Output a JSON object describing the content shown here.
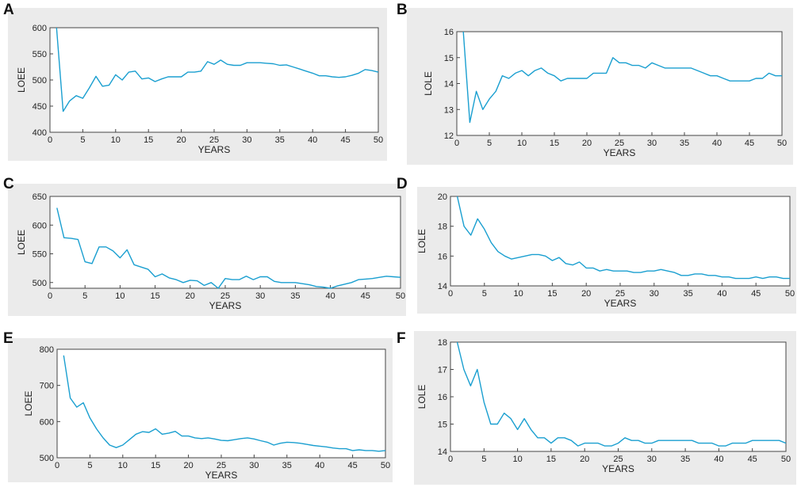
{
  "figure": {
    "line_color": "#1a9fd0",
    "panel_background": "#ebebeb",
    "plot_background": "#ffffff"
  },
  "chart_data": [
    {
      "id": "A",
      "label": "A",
      "type": "line",
      "xlabel": "YEARS",
      "ylabel": "LOEE",
      "xlim": [
        0,
        50
      ],
      "ylim": [
        400,
        600
      ],
      "xticks": [
        0,
        5,
        10,
        15,
        20,
        25,
        30,
        35,
        40,
        45,
        50
      ],
      "yticks": [
        400,
        450,
        500,
        550,
        600
      ],
      "series": [
        {
          "name": "LOEE",
          "x": [
            1,
            2,
            3,
            4,
            5,
            6,
            7,
            8,
            9,
            10,
            11,
            12,
            13,
            14,
            15,
            16,
            17,
            18,
            19,
            20,
            21,
            22,
            23,
            24,
            25,
            26,
            27,
            28,
            29,
            30,
            31,
            32,
            33,
            34,
            35,
            36,
            37,
            38,
            39,
            40,
            41,
            42,
            43,
            44,
            45,
            46,
            47,
            48,
            49,
            50
          ],
          "y": [
            600,
            440,
            460,
            470,
            465,
            485,
            507,
            488,
            490,
            510,
            500,
            515,
            517,
            502,
            504,
            497,
            502,
            506,
            506,
            506,
            515,
            515,
            517,
            535,
            530,
            538,
            530,
            528,
            528,
            533,
            533,
            533,
            532,
            531,
            528,
            529,
            525,
            521,
            517,
            513,
            508,
            508,
            506,
            505,
            506,
            509,
            513,
            520,
            518,
            515
          ]
        }
      ]
    },
    {
      "id": "B",
      "label": "B",
      "type": "line",
      "xlabel": "YEARS",
      "ylabel": "LOLE",
      "xlim": [
        0,
        50
      ],
      "ylim": [
        12,
        16
      ],
      "xticks": [
        0,
        5,
        10,
        15,
        20,
        25,
        30,
        35,
        40,
        45,
        50
      ],
      "yticks": [
        12,
        13,
        14,
        15,
        16
      ],
      "series": [
        {
          "name": "LOLE",
          "x": [
            1,
            2,
            3,
            4,
            5,
            6,
            7,
            8,
            9,
            10,
            11,
            12,
            13,
            14,
            15,
            16,
            17,
            18,
            19,
            20,
            21,
            22,
            23,
            24,
            25,
            26,
            27,
            28,
            29,
            30,
            31,
            32,
            33,
            34,
            35,
            36,
            37,
            38,
            39,
            40,
            41,
            42,
            43,
            44,
            45,
            46,
            47,
            48,
            49,
            50
          ],
          "y": [
            16,
            12.5,
            13.7,
            13.0,
            13.4,
            13.7,
            14.3,
            14.2,
            14.4,
            14.5,
            14.3,
            14.5,
            14.6,
            14.4,
            14.3,
            14.1,
            14.2,
            14.2,
            14.2,
            14.2,
            14.4,
            14.4,
            14.4,
            15.0,
            14.8,
            14.8,
            14.7,
            14.7,
            14.6,
            14.8,
            14.7,
            14.6,
            14.6,
            14.6,
            14.6,
            14.6,
            14.5,
            14.4,
            14.3,
            14.3,
            14.2,
            14.1,
            14.1,
            14.1,
            14.1,
            14.2,
            14.2,
            14.4,
            14.3,
            14.3
          ]
        }
      ]
    },
    {
      "id": "C",
      "label": "C",
      "type": "line",
      "xlabel": "YEARS",
      "ylabel": "LOEE",
      "xlim": [
        0,
        50
      ],
      "ylim": [
        490,
        650
      ],
      "xticks": [
        0,
        5,
        10,
        15,
        20,
        25,
        30,
        35,
        40,
        45,
        50
      ],
      "yticks": [
        500,
        550,
        600,
        650
      ],
      "series": [
        {
          "name": "LOEE",
          "x": [
            1,
            2,
            3,
            4,
            5,
            6,
            7,
            8,
            9,
            10,
            11,
            12,
            13,
            14,
            15,
            16,
            17,
            18,
            19,
            20,
            21,
            22,
            23,
            24,
            25,
            26,
            27,
            28,
            29,
            30,
            31,
            32,
            33,
            34,
            35,
            36,
            37,
            38,
            39,
            40,
            41,
            42,
            43,
            44,
            45,
            46,
            47,
            48,
            49,
            50
          ],
          "y": [
            630,
            578,
            577,
            575,
            536,
            533,
            562,
            562,
            555,
            543,
            557,
            531,
            527,
            523,
            510,
            515,
            508,
            505,
            500,
            504,
            503,
            495,
            500,
            490,
            507,
            505,
            505,
            511,
            505,
            510,
            510,
            502,
            500,
            500,
            500,
            498,
            496,
            493,
            492,
            490,
            494,
            497,
            500,
            505,
            506,
            507,
            509,
            511,
            510,
            509
          ]
        }
      ]
    },
    {
      "id": "D",
      "label": "D",
      "type": "line",
      "xlabel": "YEARS",
      "ylabel": "LOLE",
      "xlim": [
        0,
        50
      ],
      "ylim": [
        14,
        20
      ],
      "xticks": [
        0,
        5,
        10,
        15,
        20,
        25,
        30,
        35,
        40,
        45,
        50
      ],
      "yticks": [
        14,
        16,
        18,
        20
      ],
      "series": [
        {
          "name": "LOLE",
          "x": [
            1,
            2,
            3,
            4,
            5,
            6,
            7,
            8,
            9,
            10,
            11,
            12,
            13,
            14,
            15,
            16,
            17,
            18,
            19,
            20,
            21,
            22,
            23,
            24,
            25,
            26,
            27,
            28,
            29,
            30,
            31,
            32,
            33,
            34,
            35,
            36,
            37,
            38,
            39,
            40,
            41,
            42,
            43,
            44,
            45,
            46,
            47,
            48,
            49,
            50
          ],
          "y": [
            20,
            18,
            17.4,
            18.5,
            17.8,
            16.9,
            16.3,
            16.0,
            15.8,
            15.9,
            16.0,
            16.1,
            16.1,
            16.0,
            15.7,
            15.9,
            15.5,
            15.4,
            15.6,
            15.2,
            15.2,
            15.0,
            15.1,
            15.0,
            15.0,
            15.0,
            14.9,
            14.9,
            15.0,
            15.0,
            15.1,
            15.0,
            14.9,
            14.7,
            14.7,
            14.8,
            14.8,
            14.7,
            14.7,
            14.6,
            14.6,
            14.5,
            14.5,
            14.5,
            14.6,
            14.5,
            14.6,
            14.6,
            14.5,
            14.5
          ]
        }
      ]
    },
    {
      "id": "E",
      "label": "E",
      "type": "line",
      "xlabel": "YEARS",
      "ylabel": "LOEE",
      "xlim": [
        0,
        50
      ],
      "ylim": [
        500,
        800
      ],
      "xticks": [
        0,
        5,
        10,
        15,
        20,
        25,
        30,
        35,
        40,
        45,
        50
      ],
      "yticks": [
        500,
        600,
        700,
        800
      ],
      "series": [
        {
          "name": "LOEE",
          "x": [
            1,
            2,
            3,
            4,
            5,
            6,
            7,
            8,
            9,
            10,
            11,
            12,
            13,
            14,
            15,
            16,
            17,
            18,
            19,
            20,
            21,
            22,
            23,
            24,
            25,
            26,
            27,
            28,
            29,
            30,
            31,
            32,
            33,
            34,
            35,
            36,
            37,
            38,
            39,
            40,
            41,
            42,
            43,
            44,
            45,
            46,
            47,
            48,
            49,
            50
          ],
          "y": [
            783,
            665,
            640,
            652,
            610,
            580,
            555,
            535,
            528,
            535,
            550,
            565,
            572,
            570,
            580,
            565,
            568,
            573,
            560,
            560,
            555,
            553,
            555,
            552,
            548,
            547,
            550,
            553,
            555,
            552,
            547,
            543,
            535,
            540,
            543,
            542,
            540,
            537,
            534,
            532,
            530,
            527,
            525,
            525,
            520,
            522,
            520,
            520,
            518,
            520
          ]
        }
      ]
    },
    {
      "id": "F",
      "label": "F",
      "type": "line",
      "xlabel": "YEARS",
      "ylabel": "LOLE",
      "xlim": [
        0,
        50
      ],
      "ylim": [
        14,
        18
      ],
      "xticks": [
        0,
        5,
        10,
        15,
        20,
        25,
        30,
        35,
        40,
        45,
        50
      ],
      "yticks": [
        14,
        15,
        16,
        17,
        18
      ],
      "series": [
        {
          "name": "LOLE",
          "x": [
            1,
            2,
            3,
            4,
            5,
            6,
            7,
            8,
            9,
            10,
            11,
            12,
            13,
            14,
            15,
            16,
            17,
            18,
            19,
            20,
            21,
            22,
            23,
            24,
            25,
            26,
            27,
            28,
            29,
            30,
            31,
            32,
            33,
            34,
            35,
            36,
            37,
            38,
            39,
            40,
            41,
            42,
            43,
            44,
            45,
            46,
            47,
            48,
            49,
            50
          ],
          "y": [
            18,
            17.0,
            16.4,
            17.0,
            15.8,
            15.0,
            15.0,
            15.4,
            15.2,
            14.8,
            15.2,
            14.8,
            14.5,
            14.5,
            14.3,
            14.5,
            14.5,
            14.4,
            14.2,
            14.3,
            14.3,
            14.3,
            14.2,
            14.2,
            14.3,
            14.5,
            14.4,
            14.4,
            14.3,
            14.3,
            14.4,
            14.4,
            14.4,
            14.4,
            14.4,
            14.4,
            14.3,
            14.3,
            14.3,
            14.2,
            14.2,
            14.3,
            14.3,
            14.3,
            14.4,
            14.4,
            14.4,
            14.4,
            14.4,
            14.3
          ]
        }
      ]
    }
  ]
}
